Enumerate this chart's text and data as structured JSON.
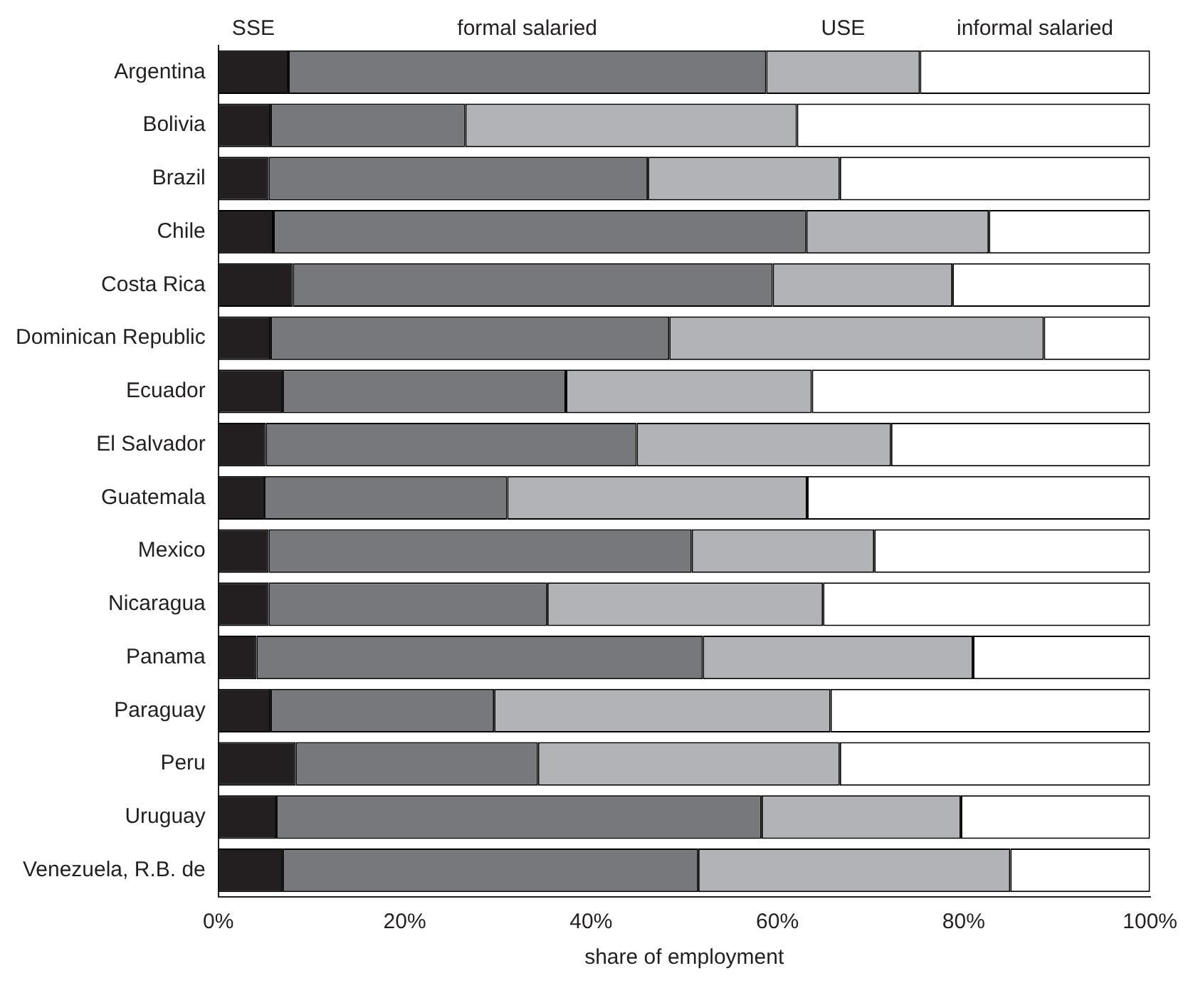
{
  "chart_data": {
    "type": "bar",
    "orientation": "horizontal",
    "stacked": true,
    "xlabel": "share of employment",
    "categories": [
      "Argentina",
      "Bolivia",
      "Brazil",
      "Chile",
      "Costa Rica",
      "Dominican Republic",
      "Ecuador",
      "El Salvador",
      "Guatemala",
      "Mexico",
      "Nicaragua",
      "Panama",
      "Paraguay",
      "Peru",
      "Uruguay",
      "Venezuela, R.B. de"
    ],
    "series": [
      {
        "name": "SSE",
        "color": "#231f20",
        "values": [
          7.5,
          5.6,
          5.4,
          5.9,
          8.0,
          5.6,
          6.9,
          5.1,
          4.9,
          5.4,
          5.4,
          4.1,
          5.6,
          8.3,
          6.2,
          6.9
        ]
      },
      {
        "name": "formal salaried",
        "color": "#77787b",
        "values": [
          51.3,
          20.9,
          40.7,
          57.2,
          51.5,
          42.8,
          30.4,
          39.8,
          26.1,
          45.4,
          29.9,
          47.9,
          24.0,
          26.0,
          52.1,
          44.6
        ]
      },
      {
        "name": "USE",
        "color": "#b1b3b6",
        "values": [
          16.5,
          35.6,
          20.6,
          19.6,
          19.3,
          40.2,
          26.4,
          27.3,
          32.2,
          19.6,
          29.6,
          29.0,
          36.1,
          32.4,
          21.4,
          33.5
        ]
      },
      {
        "name": "informal salaried",
        "color": "#ffffff",
        "values": [
          24.7,
          37.9,
          33.3,
          17.3,
          21.2,
          11.4,
          36.3,
          27.8,
          36.8,
          29.6,
          35.1,
          19.0,
          34.3,
          33.3,
          20.3,
          15.0
        ]
      }
    ],
    "xlim": [
      0,
      100
    ],
    "xticks": [
      {
        "value": 0,
        "label": "0%"
      },
      {
        "value": 20,
        "label": "20%"
      },
      {
        "value": 40,
        "label": "40%"
      },
      {
        "value": 60,
        "label": "60%"
      },
      {
        "value": 80,
        "label": "80%"
      },
      {
        "value": 100,
        "label": "100%"
      }
    ],
    "grid": false,
    "legend": "top"
  }
}
